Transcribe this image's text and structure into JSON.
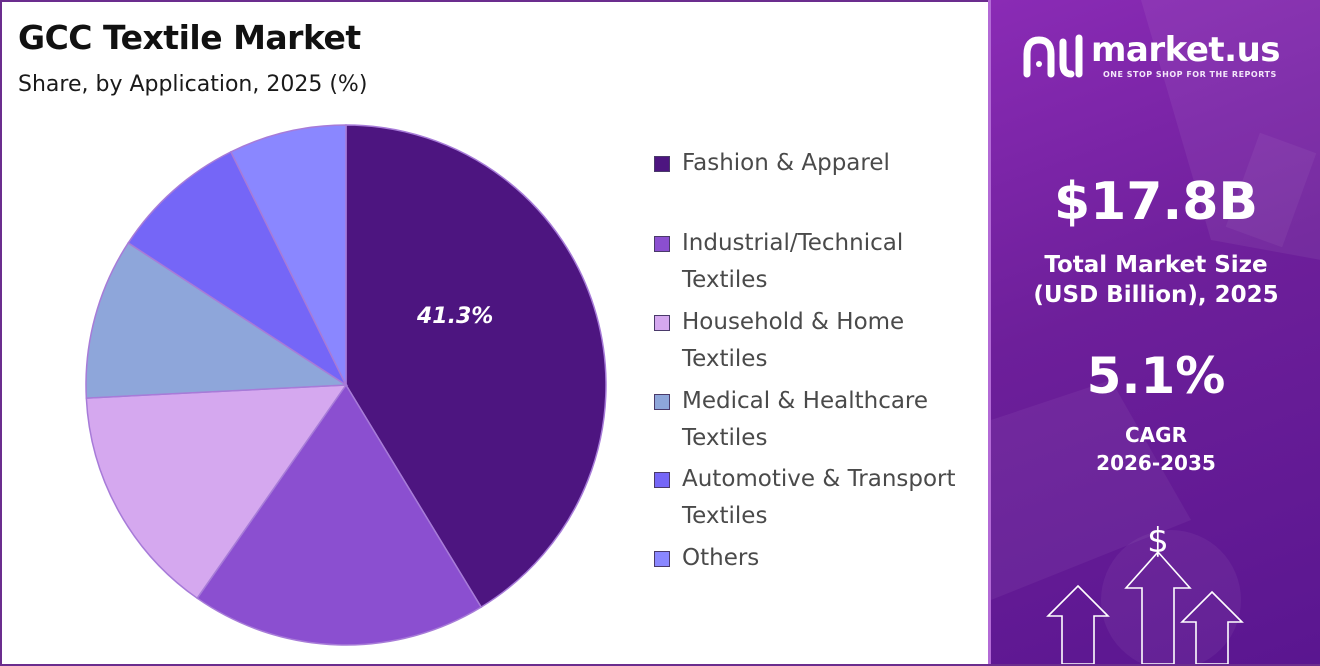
{
  "chart_data": {
    "type": "pie",
    "title": "GCC Textile Market",
    "subtitle": "Share, by Application, 2025 (%)",
    "categories": [
      "Fashion & Apparel",
      "Industrial/Technical Textiles",
      "Household & Home Textiles",
      "Medical & Healthcare Textiles",
      "Automotive & Transport Textiles",
      "Others"
    ],
    "values": [
      41.3,
      18.4,
      14.5,
      10.0,
      8.5,
      7.3
    ],
    "colors": [
      "#4d1580",
      "#8b4fd0",
      "#d5a8ef",
      "#8ea6da",
      "#7566f7",
      "#8a87ff"
    ],
    "data_labels": [
      {
        "index": 0,
        "text": "41.3%"
      }
    ],
    "legend_placement": "right"
  },
  "side_panel": {
    "logo_text": "market.us",
    "logo_tagline": "ONE STOP SHOP FOR THE REPORTS",
    "market_size_value": "$17.8B",
    "market_size_label_line1": "Total Market Size",
    "market_size_label_line2": "(USD Billion), 2025",
    "cagr_value": "5.1%",
    "cagr_label_line1": "CAGR",
    "cagr_label_line2": "2026-2035",
    "currency_symbol": "$",
    "icons": [
      "market-us-logo-icon",
      "up-arrow-icon",
      "dollar-icon"
    ],
    "background_color": "#7a24a8"
  }
}
